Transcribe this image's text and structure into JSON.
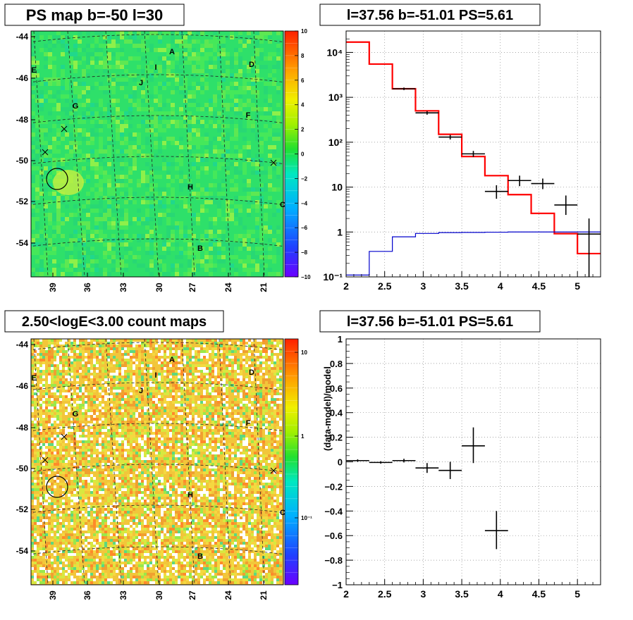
{
  "colors": {
    "frame": "#000000",
    "grid": "#888888",
    "model_line": "#ff0000",
    "bg_line": "#0000cc",
    "data_marker": "#000000",
    "ps_map_base": "#2ee06a",
    "count_map_base": "#f2c63a"
  },
  "panels": {
    "ps_map": {
      "title": "PS map b=-50 l=30",
      "y_ticks": [
        "-44",
        "-46",
        "-48",
        "-50",
        "-52",
        "-54"
      ],
      "x_ticks": [
        "39",
        "36",
        "33",
        "30",
        "27",
        "24",
        "21"
      ],
      "colorbar_ticks": [
        "10",
        "8",
        "6",
        "4",
        "2",
        "0",
        "−2",
        "−4",
        "−6",
        "−8",
        "−10"
      ],
      "source_labels": [
        "A",
        "B",
        "C",
        "D",
        "E",
        "F",
        "G",
        "H",
        "I",
        "J"
      ]
    },
    "count_map": {
      "title": "2.50<logE<3.00 count maps",
      "y_ticks": [
        "-44",
        "-46",
        "-48",
        "-50",
        "-52",
        "-54"
      ],
      "x_ticks": [
        "39",
        "36",
        "33",
        "30",
        "27",
        "24",
        "21"
      ],
      "colorbar_ticks": [
        "10",
        "1",
        "10⁻¹"
      ],
      "source_labels": [
        "A",
        "B",
        "C",
        "D",
        "E",
        "F",
        "G",
        "H",
        "I",
        "J"
      ]
    }
  },
  "chart_data": [
    {
      "type": "line",
      "title": "l=37.56 b=-51.01 PS=5.61",
      "xlabel": "",
      "ylabel": "",
      "log_y": true,
      "xlim": [
        2,
        5.3
      ],
      "ylim": [
        0.1,
        30000
      ],
      "x_ticks": [
        "2",
        "2.5",
        "3",
        "3.5",
        "4",
        "4.5",
        "5"
      ],
      "y_ticks": [
        "10⁻¹",
        "1",
        "10",
        "10²",
        "10³",
        "10⁴"
      ],
      "grid": true,
      "series": [
        {
          "style": "step",
          "color": "#ff0000",
          "edges": [
            2.0,
            2.3,
            2.6,
            2.9,
            3.2,
            3.5,
            3.8,
            4.1,
            4.4,
            4.7,
            5.0,
            5.3
          ],
          "values": [
            17000,
            5500,
            1550,
            500,
            150,
            48,
            18,
            6.8,
            2.6,
            0.92,
            0.33
          ]
        },
        {
          "style": "step",
          "color": "#0000cc",
          "edges": [
            2.0,
            2.3,
            2.6,
            2.9,
            3.2,
            3.5,
            3.8,
            4.1,
            4.4,
            4.7,
            5.0,
            5.3
          ],
          "values": [
            0.11,
            0.37,
            0.78,
            0.93,
            0.97,
            0.98,
            0.99,
            1.0,
            1.0,
            1.0,
            1.0
          ]
        },
        {
          "style": "errorbar",
          "color": "#000000",
          "points": [
            {
              "x": 2.75,
              "y": 1550,
              "xerr": 0.15,
              "ylo": 1450,
              "yhi": 1650
            },
            {
              "x": 3.05,
              "y": 450,
              "xerr": 0.15,
              "ylo": 410,
              "yhi": 490
            },
            {
              "x": 3.35,
              "y": 130,
              "xerr": 0.15,
              "ylo": 115,
              "yhi": 145
            },
            {
              "x": 3.65,
              "y": 55,
              "xerr": 0.15,
              "ylo": 47,
              "yhi": 64
            },
            {
              "x": 3.95,
              "y": 8,
              "xerr": 0.15,
              "ylo": 5.5,
              "yhi": 11
            },
            {
              "x": 4.25,
              "y": 14,
              "xerr": 0.15,
              "ylo": 10.5,
              "yhi": 18
            },
            {
              "x": 4.55,
              "y": 12,
              "xerr": 0.15,
              "ylo": 9,
              "yhi": 15.5
            },
            {
              "x": 4.85,
              "y": 4,
              "xerr": 0.15,
              "ylo": 2.4,
              "yhi": 6.5
            },
            {
              "x": 5.15,
              "y": 0.9,
              "xerr": 0.15,
              "ylo": 0.1,
              "yhi": 2
            }
          ]
        }
      ]
    },
    {
      "type": "scatter",
      "title": "l=37.56 b=-51.01 PS=5.61",
      "xlabel": "",
      "ylabel": "(data-model)/model",
      "xlim": [
        2,
        5.3
      ],
      "ylim": [
        -1,
        1
      ],
      "x_ticks": [
        "2",
        "2.5",
        "3",
        "3.5",
        "4",
        "4.5",
        "5"
      ],
      "y_ticks": [
        "−1",
        "−0.8",
        "−0.6",
        "−0.4",
        "−0.2",
        "0",
        "0.2",
        "0.4",
        "0.6",
        "0.8",
        "1"
      ],
      "grid": true,
      "series": [
        {
          "style": "errorbar",
          "color": "#000000",
          "points": [
            {
              "x": 2.15,
              "y": 0.01,
              "xerr": 0.15,
              "ylo": 0.0,
              "yhi": 0.02
            },
            {
              "x": 2.45,
              "y": -0.005,
              "xerr": 0.15,
              "ylo": -0.015,
              "yhi": 0.005
            },
            {
              "x": 2.75,
              "y": 0.01,
              "xerr": 0.15,
              "ylo": -0.005,
              "yhi": 0.025
            },
            {
              "x": 3.05,
              "y": -0.05,
              "xerr": 0.15,
              "ylo": -0.09,
              "yhi": -0.01
            },
            {
              "x": 3.35,
              "y": -0.07,
              "xerr": 0.15,
              "ylo": -0.14,
              "yhi": 0.0
            },
            {
              "x": 3.65,
              "y": 0.13,
              "xerr": 0.15,
              "ylo": -0.01,
              "yhi": 0.28
            },
            {
              "x": 3.95,
              "y": -0.56,
              "xerr": 0.15,
              "ylo": -0.71,
              "yhi": -0.4
            }
          ]
        }
      ]
    }
  ]
}
